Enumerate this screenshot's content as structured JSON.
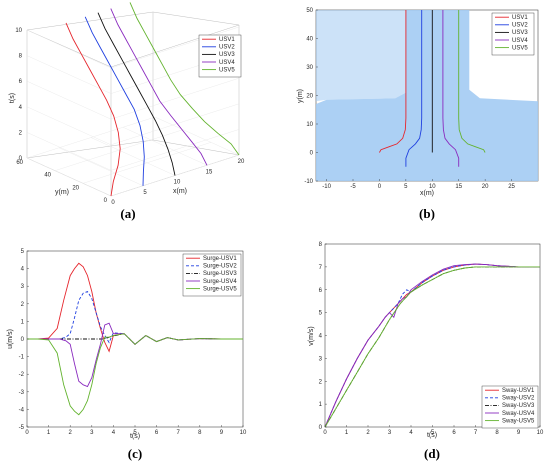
{
  "chart_data": [
    {
      "panel": "(a)",
      "type": "line",
      "xlabel": "x(m)",
      "ylabel": "y(m)",
      "zlabel": "t(s)",
      "xlim": [
        0,
        20
      ],
      "ylim": [
        0,
        60
      ],
      "zlim": [
        0,
        10
      ],
      "x_ticks": [
        "0",
        "5",
        "10",
        "15",
        "20"
      ],
      "y_ticks": [
        "0",
        "20",
        "40",
        "60"
      ],
      "z_ticks": [
        "0",
        "2",
        "4",
        "6",
        "8",
        "10"
      ],
      "legend_position": "top-right",
      "grid": true,
      "series": [
        {
          "name": "USV1",
          "color": "#e6262d",
          "x": [
            0,
            0.8,
            2.2,
            3.4,
            4.2,
            4.8,
            5,
            5,
            5,
            5,
            5,
            5
          ],
          "y": [
            0,
            2,
            5,
            9,
            14,
            20,
            26,
            32,
            38,
            44,
            50,
            55
          ],
          "t": [
            0,
            0.9,
            1.8,
            2.7,
            3.6,
            4.5,
            5.4,
            6.3,
            7.2,
            8.1,
            9,
            10
          ]
        },
        {
          "name": "USV2",
          "color": "#1f3fe0",
          "x": [
            5,
            5.5,
            6.3,
            7,
            7.6,
            8,
            8,
            8,
            8,
            8,
            8,
            8
          ],
          "y": [
            0,
            2,
            5,
            9,
            14,
            20,
            26,
            32,
            38,
            44,
            50,
            55
          ],
          "t": [
            0,
            0.9,
            1.8,
            2.7,
            3.6,
            4.5,
            5.4,
            6.3,
            7.2,
            8.1,
            9,
            10
          ]
        },
        {
          "name": "USV3",
          "color": "#111111",
          "x": [
            10,
            10,
            10,
            10,
            10,
            10,
            10,
            10,
            10,
            10,
            10,
            10
          ],
          "y": [
            0,
            2,
            5,
            9,
            14,
            20,
            26,
            32,
            38,
            44,
            50,
            55
          ],
          "t": [
            0,
            0.9,
            1.8,
            2.7,
            3.6,
            4.5,
            5.4,
            6.3,
            7.2,
            8.1,
            9,
            10
          ]
        },
        {
          "name": "USV4",
          "color": "#8a2bbf",
          "x": [
            15,
            14.5,
            13.7,
            13,
            12.4,
            12,
            12,
            12,
            12,
            12,
            12,
            12
          ],
          "y": [
            0,
            2,
            5,
            9,
            14,
            20,
            26,
            32,
            38,
            44,
            50,
            55
          ],
          "t": [
            0,
            0.9,
            1.8,
            2.7,
            3.6,
            4.5,
            5.4,
            6.3,
            7.2,
            8.1,
            9,
            10
          ]
        },
        {
          "name": "USV5",
          "color": "#63b32e",
          "x": [
            20,
            19.2,
            17.8,
            16.6,
            15.8,
            15.2,
            15,
            15,
            15,
            15,
            15,
            15
          ],
          "y": [
            0,
            2,
            5,
            9,
            14,
            20,
            26,
            32,
            38,
            44,
            50,
            55
          ],
          "t": [
            0,
            0.9,
            1.8,
            2.7,
            3.6,
            4.5,
            5.4,
            6.3,
            7.2,
            8.1,
            9,
            10
          ]
        }
      ]
    },
    {
      "panel": "(b)",
      "type": "line",
      "xlabel": "x(m)",
      "ylabel": "y(m)",
      "xlim": [
        -12,
        30
      ],
      "ylim": [
        -10,
        50
      ],
      "x_ticks": [
        "-10",
        "-5",
        "0",
        "5",
        "10",
        "15",
        "20",
        "25"
      ],
      "y_ticks": [
        "-10",
        "0",
        "10",
        "20",
        "30",
        "40",
        "50"
      ],
      "background_color": "#a3cbf3",
      "legend_position": "top-right",
      "series": [
        {
          "name": "USV1",
          "color": "#e6262d",
          "x": [
            0,
            0.3,
            1.8,
            3.3,
            4.4,
            4.9,
            5,
            5,
            5
          ],
          "y": [
            0,
            1,
            2,
            3,
            5,
            8,
            12,
            30,
            50
          ]
        },
        {
          "name": "USV2",
          "color": "#1f3fe0",
          "x": [
            5,
            5,
            5.6,
            6.8,
            7.6,
            7.9,
            8,
            8,
            8
          ],
          "y": [
            -5,
            -2,
            1,
            3,
            5,
            8,
            12,
            30,
            50
          ]
        },
        {
          "name": "USV3",
          "color": "#111111",
          "x": [
            10,
            10,
            10,
            10,
            10,
            10,
            10
          ],
          "y": [
            0,
            3,
            8,
            12,
            20,
            35,
            50
          ]
        },
        {
          "name": "USV4",
          "color": "#8a2bbf",
          "x": [
            15,
            15,
            14.4,
            13.2,
            12.4,
            12.1,
            12,
            12,
            12
          ],
          "y": [
            -5,
            -2,
            1,
            3,
            5,
            8,
            12,
            30,
            50
          ]
        },
        {
          "name": "USV5",
          "color": "#63b32e",
          "x": [
            20,
            19.7,
            18.2,
            16.7,
            15.6,
            15.1,
            15,
            15,
            15
          ],
          "y": [
            0,
            1,
            2,
            3,
            5,
            8,
            12,
            30,
            50
          ]
        }
      ]
    },
    {
      "panel": "(c)",
      "type": "line",
      "xlabel": "t(s)",
      "ylabel": "u(m/s)",
      "xlim": [
        0,
        10
      ],
      "ylim": [
        -5,
        5
      ],
      "x_ticks": [
        "0",
        "1",
        "2",
        "3",
        "4",
        "5",
        "6",
        "7",
        "8",
        "9",
        "10"
      ],
      "y_ticks": [
        "-5",
        "-4",
        "-3",
        "-2",
        "-1",
        "0",
        "1",
        "2",
        "3",
        "4",
        "5"
      ],
      "legend_position": "top-right",
      "series": [
        {
          "name": "Surge-USV1",
          "color": "#e6262d",
          "dash": "",
          "x": [
            0,
            0.5,
            1,
            1.4,
            1.7,
            2,
            2.2,
            2.4,
            2.6,
            2.8,
            3,
            3.2,
            3.4,
            3.6,
            3.8,
            4,
            4.5,
            5,
            5.5,
            6,
            6.5,
            7,
            8,
            9,
            10
          ],
          "y": [
            0,
            0,
            0.05,
            0.6,
            2.2,
            3.6,
            4.0,
            4.3,
            4.1,
            3.6,
            2.7,
            1.5,
            0.6,
            -0.2,
            -0.7,
            0.2,
            0.3,
            -0.3,
            0.2,
            -0.15,
            0.08,
            -0.05,
            0.02,
            0,
            0
          ]
        },
        {
          "name": "Surge-USV2",
          "color": "#1f3fe0",
          "dash": "3,2",
          "x": [
            0,
            0.5,
            1,
            1.5,
            1.8,
            2,
            2.2,
            2.4,
            2.6,
            2.8,
            3,
            3.2,
            3.4,
            3.6,
            3.8,
            4,
            4.5,
            5,
            5.5,
            6,
            6.5,
            7,
            8,
            9,
            10
          ],
          "y": [
            0,
            0,
            0,
            0,
            0.1,
            0.3,
            1.2,
            2.2,
            2.6,
            2.7,
            2.3,
            1.5,
            0.7,
            0.2,
            -0.2,
            0.35,
            0.3,
            -0.3,
            0.2,
            -0.15,
            0.08,
            -0.05,
            0.02,
            0,
            0
          ]
        },
        {
          "name": "Surge-USV3",
          "color": "#111111",
          "dash": "4,1.5,1,1.5",
          "x": [
            0,
            1,
            2,
            3,
            3.5,
            3.7,
            3.9,
            4.1,
            4.5,
            5,
            5.5,
            6,
            6.5,
            7,
            8,
            9,
            10
          ],
          "y": [
            0,
            0,
            0,
            0,
            0,
            0.05,
            0.15,
            0.2,
            0.3,
            -0.3,
            0.2,
            -0.15,
            0.08,
            -0.05,
            0.02,
            0,
            0
          ]
        },
        {
          "name": "Surge-USV4",
          "color": "#8a2bbf",
          "dash": "",
          "x": [
            0,
            0.5,
            1,
            1.5,
            1.8,
            2,
            2.2,
            2.4,
            2.6,
            2.8,
            3,
            3.2,
            3.4,
            3.6,
            3.8,
            4,
            4.5,
            5,
            5.5,
            6,
            6.5,
            7,
            8,
            9,
            10
          ],
          "y": [
            0,
            0,
            0,
            0,
            -0.1,
            -0.3,
            -1.4,
            -2.4,
            -2.6,
            -2.7,
            -2.2,
            -1.2,
            -0.3,
            0.8,
            0.9,
            0.3,
            0.3,
            -0.3,
            0.2,
            -0.15,
            0.08,
            -0.05,
            0.02,
            0,
            0
          ]
        },
        {
          "name": "Surge-USV5",
          "color": "#63b32e",
          "dash": "",
          "x": [
            0,
            0.5,
            1,
            1.4,
            1.7,
            2,
            2.2,
            2.4,
            2.6,
            2.8,
            3,
            3.2,
            3.4,
            3.6,
            3.8,
            4,
            4.5,
            5,
            5.5,
            6,
            6.5,
            7,
            8,
            9,
            10
          ],
          "y": [
            0,
            0,
            -0.05,
            -0.8,
            -2.6,
            -3.8,
            -4.1,
            -4.3,
            -4.0,
            -3.5,
            -2.6,
            -1.4,
            -0.5,
            0.1,
            0.1,
            0.2,
            0.3,
            -0.3,
            0.2,
            -0.15,
            0.08,
            -0.05,
            0.02,
            0,
            0
          ]
        }
      ]
    },
    {
      "panel": "(d)",
      "type": "line",
      "xlabel": "t(s)",
      "ylabel": "v(m/s)",
      "xlim": [
        0,
        10
      ],
      "ylim": [
        0,
        8
      ],
      "x_ticks": [
        "0",
        "1",
        "2",
        "3",
        "4",
        "5",
        "6",
        "7",
        "8",
        "9",
        "10"
      ],
      "y_ticks": [
        "0",
        "1",
        "2",
        "3",
        "4",
        "5",
        "6",
        "7",
        "8"
      ],
      "legend_position": "bottom-right",
      "series": [
        {
          "name": "Sway-USV1",
          "color": "#e6262d",
          "dash": "",
          "x": [
            0,
            0.5,
            1,
            1.5,
            2,
            2.5,
            2.8,
            3,
            3.2,
            3.4,
            3.6,
            3.8,
            4,
            4.5,
            5,
            5.5,
            6,
            6.5,
            7,
            7.5,
            8,
            9,
            10
          ],
          "y": [
            0,
            1.1,
            2.1,
            3.0,
            3.8,
            4.4,
            4.8,
            5.0,
            5.2,
            5.4,
            5.6,
            5.8,
            5.9,
            6.3,
            6.6,
            6.85,
            7.0,
            7.08,
            7.12,
            7.1,
            7.05,
            7.0,
            7.0
          ]
        },
        {
          "name": "Sway-USV2",
          "color": "#1f3fe0",
          "dash": "3,2",
          "x": [
            0,
            0.5,
            1,
            1.5,
            2,
            2.5,
            2.8,
            3,
            3.2,
            3.4,
            3.6,
            3.8,
            4,
            4.5,
            5,
            5.5,
            6,
            6.5,
            7,
            7.5,
            8,
            9,
            10
          ],
          "y": [
            0,
            1.1,
            2.1,
            3.0,
            3.8,
            4.4,
            4.8,
            5.0,
            5.2,
            5.4,
            5.8,
            6.0,
            5.9,
            6.3,
            6.6,
            6.85,
            7.0,
            7.08,
            7.12,
            7.1,
            7.05,
            7.0,
            7.0
          ]
        },
        {
          "name": "Sway-USV3",
          "color": "#111111",
          "dash": "4,1.5,1,1.5",
          "x": [
            0,
            0.5,
            1,
            1.5,
            2,
            2.5,
            3,
            3.5,
            4,
            4.5,
            5,
            5.5,
            6,
            6.5,
            7,
            8,
            9,
            10
          ],
          "y": [
            0,
            0.8,
            1.6,
            2.4,
            3.2,
            3.9,
            4.7,
            5.4,
            5.9,
            6.2,
            6.45,
            6.7,
            6.85,
            6.95,
            7.0,
            7.0,
            7.0,
            7.0
          ]
        },
        {
          "name": "Sway-USV4",
          "color": "#8a2bbf",
          "dash": "",
          "x": [
            0,
            0.5,
            1,
            1.5,
            2,
            2.5,
            2.8,
            3,
            3.2,
            3.4,
            3.6,
            3.8,
            4,
            4.5,
            5,
            5.5,
            6,
            6.5,
            7,
            7.5,
            8,
            9,
            10
          ],
          "y": [
            0,
            1.1,
            2.1,
            3.0,
            3.8,
            4.4,
            4.8,
            5.0,
            4.8,
            5.4,
            5.6,
            5.7,
            6.0,
            6.35,
            6.65,
            6.9,
            7.05,
            7.1,
            7.12,
            7.1,
            7.05,
            7.0,
            7.0
          ]
        },
        {
          "name": "Sway-USV5",
          "color": "#63b32e",
          "dash": "",
          "x": [
            0,
            0.5,
            1,
            1.5,
            2,
            2.5,
            3,
            3.5,
            4,
            4.5,
            5,
            5.5,
            6,
            6.5,
            7,
            8,
            9,
            10
          ],
          "y": [
            0,
            0.8,
            1.6,
            2.4,
            3.2,
            3.9,
            4.7,
            5.4,
            5.9,
            6.2,
            6.45,
            6.7,
            6.85,
            6.95,
            7.0,
            7.0,
            7.0,
            7.0
          ]
        }
      ]
    }
  ],
  "captions": [
    "(a)",
    "(b)",
    "(c)",
    "(d)"
  ]
}
